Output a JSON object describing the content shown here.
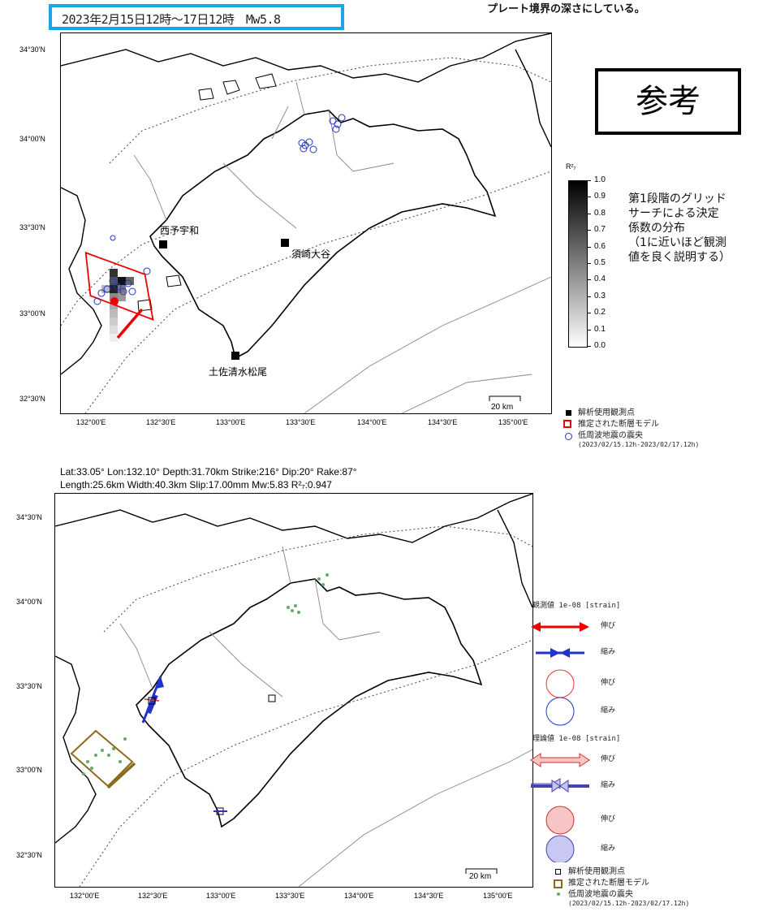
{
  "header": {
    "event_label": "2023年2月15日12時〜17日12時　Mw5.8",
    "top_note": "プレート境界の深さにしている。",
    "accent_color": "#1aa6e4"
  },
  "stamp": {
    "label": "参考"
  },
  "axes": {
    "lat_labels": [
      "34°30'N",
      "34°00'N",
      "33°30'N",
      "33°00'N",
      "32°30'N"
    ],
    "lon_labels": [
      "132°00'E",
      "132°30'E",
      "133°00'E",
      "133°30'E",
      "134°00'E",
      "134°30'E",
      "135°00'E"
    ]
  },
  "map1": {
    "stations": [
      {
        "name": "西予宇和"
      },
      {
        "name": "須崎大谷"
      },
      {
        "name": "土佐清水松尾"
      }
    ],
    "scale_label": "20 km",
    "colorbar": {
      "title": "R²₇",
      "ticks": [
        "1.0",
        "0.9",
        "0.8",
        "0.7",
        "0.6",
        "0.5",
        "0.4",
        "0.3",
        "0.2",
        "0.1",
        "0.0"
      ]
    },
    "note": {
      "line1": "第1段階のグリッド",
      "line2": "サーチによる決定",
      "line3": "係数の分布",
      "line4": "（1に近いほど観測",
      "line5": "値を良く説明する）"
    },
    "legend": {
      "station": "解析使用観測点",
      "fault": "推定された断層モデル",
      "quake": "低周波地震の震央",
      "period": "(2023/02/15.12h-2023/02/17.12h)"
    }
  },
  "params": {
    "line1": "Lat:33.05° Lon:132.10° Depth:31.70km Strike:216° Dip:20° Rake:87°",
    "line2": "Length:25.6km Width:40.3km Slip:17.00mm Mw:5.83 R²₇:0.947"
  },
  "map2": {
    "scale_label": "20 km",
    "legend": {
      "observed_header": "観測値 1e-08 [strain]",
      "theory_header": "理論値 1e-08 [strain]",
      "extension": "伸び",
      "compression": "縮み",
      "station": "解析使用観測点",
      "fault": "推定された断層モデル",
      "quake": "低周波地震の震央",
      "period": "(2023/02/15.12h-2023/02/17.12h)"
    }
  }
}
